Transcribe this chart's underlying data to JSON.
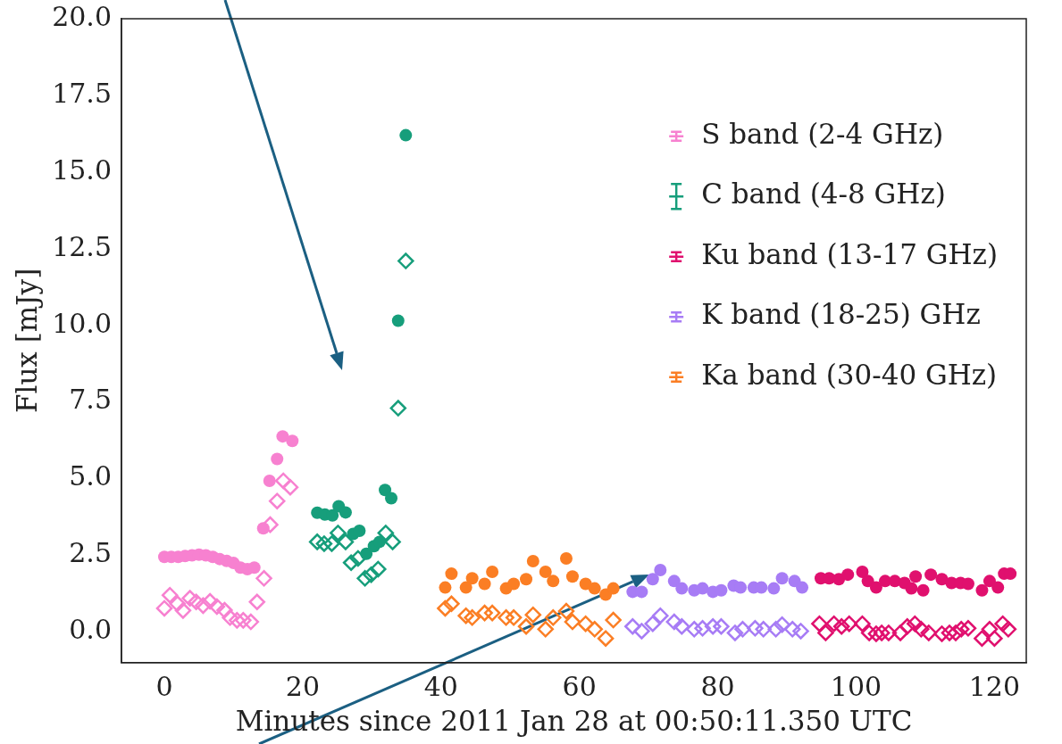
{
  "chart_data": {
    "type": "scatter",
    "xlabel": "Minutes since 2011 Jan 28 at 00:50:11.350 UTC",
    "ylabel": "Flux [mJy]",
    "xlim": [
      -6.2,
      124.6
    ],
    "ylim": [
      -1.0,
      20.0
    ],
    "xticks": [
      0,
      20,
      40,
      60,
      80,
      100,
      120
    ],
    "yticks": [
      {
        "value": 0,
        "label": "0.0"
      },
      {
        "value": 2.5,
        "label": "2.5"
      },
      {
        "value": 5,
        "label": "5.0"
      },
      {
        "value": 7.5,
        "label": "7.5"
      },
      {
        "value": 10,
        "label": "10.0"
      },
      {
        "value": 12.5,
        "label": "12.5"
      },
      {
        "value": 15,
        "label": "15.0"
      },
      {
        "value": 17.5,
        "label": "17.5"
      },
      {
        "value": 20,
        "label": "20.0"
      }
    ],
    "grid": false,
    "legend": "top right",
    "marker": "circle",
    "series": [
      {
        "name": "S band (2-4 GHz)",
        "color": "#f781d0",
        "x": [
          0,
          1,
          2,
          3,
          4,
          5,
          6,
          7,
          8,
          9,
          10,
          11,
          12,
          13,
          14.3,
          15.2,
          16.3,
          17.1,
          18.5
        ],
        "values": [
          2.45,
          2.45,
          2.45,
          2.48,
          2.5,
          2.52,
          2.5,
          2.45,
          2.38,
          2.32,
          2.25,
          2.1,
          2.05,
          2.1,
          3.38,
          4.93,
          5.64,
          6.38,
          6.23
        ]
      },
      {
        "color": "#f781d0",
        "marker": "diamond",
        "x": [
          0,
          0.8,
          1.9,
          2.7,
          3.7,
          4.6,
          5.6,
          6.6,
          7.6,
          8.7,
          9.5,
          10.5,
          11.4,
          12.5,
          13.4,
          14.4,
          15.3,
          16.3,
          17.2,
          18.2
        ],
        "values": [
          0.77,
          1.2,
          0.92,
          0.7,
          1.1,
          0.98,
          0.86,
          1.0,
          0.83,
          0.71,
          0.47,
          0.38,
          0.38,
          0.33,
          0.98,
          1.75,
          3.5,
          4.27,
          4.93,
          4.72
        ]
      },
      {
        "name": "C band (4-8 GHz)",
        "color": "#169e7b",
        "x": [
          22.1,
          23.2,
          24.3,
          25.2,
          26.2,
          27.3,
          28.2,
          29.2,
          30.3,
          31.1,
          31.9,
          32.8,
          33.8,
          34.9
        ],
        "values": [
          3.89,
          3.83,
          3.8,
          4.1,
          3.9,
          3.2,
          3.3,
          2.55,
          2.8,
          2.94,
          4.63,
          4.36,
          10.15,
          16.2
        ]
      },
      {
        "color": "#169e7b",
        "marker": "diamond",
        "x": [
          22.1,
          23.1,
          24.2,
          25.1,
          26.2,
          27.0,
          28.0,
          29.0,
          29.9,
          30.9,
          32.0,
          33.0,
          33.8,
          34.9
        ],
        "values": [
          2.94,
          2.88,
          2.88,
          3.23,
          2.94,
          2.26,
          2.4,
          1.75,
          1.87,
          2.05,
          3.23,
          2.94,
          7.3,
          12.1
        ]
      },
      {
        "name": "Ku band (13-17 GHz)",
        "color": "#e0106e",
        "x": [
          94.9,
          96.1,
          97.5,
          98.8,
          100.9,
          101.7,
          102.9,
          104.2,
          105.6,
          107.0,
          108.0,
          108.6,
          109.7,
          110.8,
          112.4,
          113.8,
          115.1,
          116.2,
          118.2,
          119.3,
          120.5,
          121.4,
          122.3
        ],
        "values": [
          1.75,
          1.75,
          1.72,
          1.87,
          1.96,
          1.66,
          1.45,
          1.66,
          1.66,
          1.6,
          1.42,
          1.81,
          1.36,
          1.87,
          1.72,
          1.6,
          1.6,
          1.57,
          1.36,
          1.66,
          1.45,
          1.9,
          1.9
        ]
      },
      {
        "color": "#e0106e",
        "marker": "diamond",
        "x": [
          94.7,
          95.6,
          96.8,
          97.9,
          99.0,
          100.9,
          101.9,
          102.9,
          103.7,
          104.7,
          106.4,
          107.4,
          108.5,
          109.4,
          110.5,
          112.4,
          113.5,
          114.4,
          115.2,
          116.2,
          118.2,
          119.3,
          120.0,
          121.2,
          122.0
        ],
        "values": [
          0.27,
          -0.03,
          0.27,
          0.18,
          0.27,
          0.27,
          -0.03,
          -0.06,
          -0.03,
          -0.03,
          -0.03,
          0.18,
          0.27,
          0.09,
          -0.03,
          -0.06,
          -0.03,
          -0.03,
          0.09,
          0.12,
          -0.21,
          0.09,
          -0.21,
          0.27,
          0.09
        ]
      },
      {
        "name": "K band (18-25) GHz",
        "color": "#a77cf5",
        "x": [
          67.7,
          69.0,
          70.6,
          71.7,
          73.7,
          74.8,
          76.6,
          77.8,
          79.3,
          80.5,
          82.3,
          83.3,
          85.2,
          86.3,
          88.1,
          89.3,
          91.1,
          92.2
        ],
        "values": [
          1.31,
          1.31,
          1.72,
          2.02,
          1.66,
          1.42,
          1.36,
          1.42,
          1.31,
          1.36,
          1.51,
          1.45,
          1.45,
          1.45,
          1.42,
          1.75,
          1.66,
          1.45
        ]
      },
      {
        "color": "#a77cf5",
        "marker": "diamond",
        "x": [
          67.7,
          69.0,
          70.6,
          71.7,
          73.7,
          74.8,
          76.6,
          77.8,
          79.3,
          80.5,
          82.5,
          83.6,
          85.4,
          86.6,
          88.4,
          89.3,
          90.8,
          92.0
        ],
        "values": [
          0.18,
          0.03,
          0.27,
          0.53,
          0.33,
          0.18,
          0.09,
          0.12,
          0.18,
          0.18,
          -0.03,
          0.09,
          0.12,
          0.09,
          0.09,
          0.24,
          0.09,
          0.03
        ]
      },
      {
        "name": "Ka band (30-40 GHz)",
        "color": "#fb7e24",
        "x": [
          40.6,
          41.5,
          43.6,
          44.5,
          46.3,
          47.4,
          49.4,
          50.5,
          52.3,
          53.3,
          55.1,
          56.2,
          58.1,
          59.0,
          60.9,
          62.2,
          63.8,
          64.9
        ],
        "values": [
          1.45,
          1.9,
          1.45,
          1.75,
          1.57,
          1.96,
          1.42,
          1.57,
          1.72,
          2.31,
          1.96,
          1.66,
          2.4,
          1.81,
          1.57,
          1.42,
          1.22,
          1.42
        ]
      },
      {
        "color": "#fb7e24",
        "marker": "diamond",
        "x": [
          40.6,
          41.5,
          43.6,
          44.5,
          46.3,
          47.4,
          49.4,
          50.5,
          52.3,
          53.3,
          55.1,
          56.2,
          58.1,
          59.0,
          60.9,
          62.2,
          63.8,
          64.9
        ],
        "values": [
          0.77,
          0.92,
          0.53,
          0.47,
          0.62,
          0.62,
          0.47,
          0.47,
          0.18,
          0.56,
          0.09,
          0.47,
          0.68,
          0.33,
          0.27,
          0.09,
          -0.21,
          0.39
        ]
      }
    ]
  }
}
